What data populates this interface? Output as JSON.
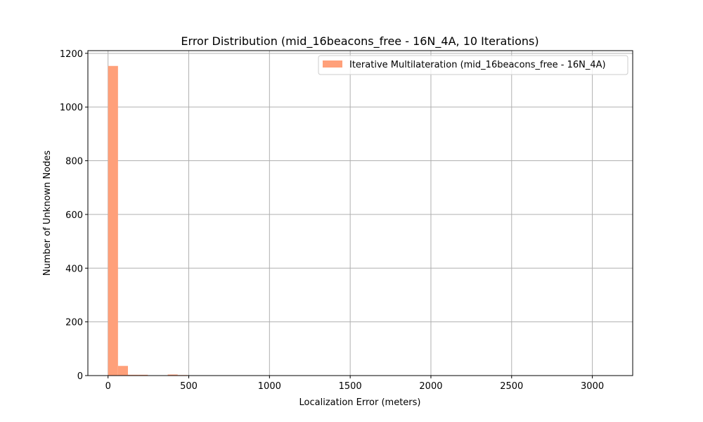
{
  "chart_data": {
    "type": "bar",
    "subtype": "histogram",
    "title": "Error Distribution (mid_16beacons_free - 16N_4A, 10 Iterations)",
    "xlabel": "Localization Error (meters)",
    "ylabel": "Number of Unknown Nodes",
    "xlim": [
      -125,
      3250
    ],
    "ylim": [
      0,
      1210
    ],
    "xticks": [
      0,
      500,
      1000,
      1500,
      2000,
      2500,
      3000
    ],
    "yticks": [
      0,
      200,
      400,
      600,
      800,
      1000,
      1200
    ],
    "grid": true,
    "legend_position": "top-right",
    "bin_width": 61.6,
    "bins_start": 0,
    "series": [
      {
        "name": "Iterative Multilateration (mid_16beacons_free - 16N_4A)",
        "color": "#ffa07a",
        "values": [
          1153,
          36,
          3,
          3,
          1,
          0,
          4,
          2,
          1,
          1,
          0,
          0,
          1,
          0,
          0,
          0,
          0,
          0,
          0,
          0,
          0,
          0,
          0,
          0,
          0,
          0,
          0,
          0,
          0,
          0,
          0,
          0,
          0,
          0,
          0,
          0,
          0,
          0,
          0,
          0,
          0,
          0,
          0,
          0,
          0,
          0,
          0,
          0,
          0,
          1
        ]
      }
    ]
  }
}
